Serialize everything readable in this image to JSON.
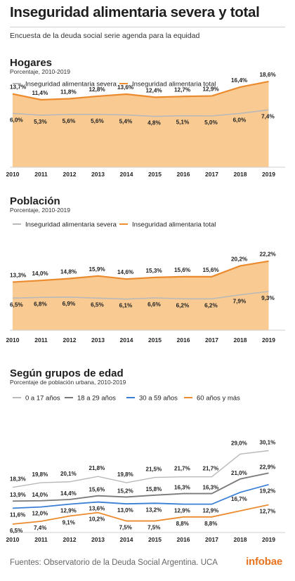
{
  "title": "Inseguridad alimentaria severa y total",
  "subtitle": "Encuesta de la deuda social serie agenda para la equidad",
  "footer": "Fuentes: Observatorio de la Deuda Social Argentina. UCA",
  "brand": "infobae",
  "colors": {
    "gray": "#b9b9b9",
    "orange": "#ec8a2e",
    "fill": "#f9cb93",
    "blue": "#3a7fd6",
    "darkgray": "#7a7a7a"
  },
  "chart_data": [
    {
      "type": "area",
      "title": "Hogares",
      "subtitle": "Porcentaje, 2010-2019",
      "x": [
        "2010",
        "2011",
        "2012",
        "2013",
        "2014",
        "2015",
        "2016",
        "2017",
        "2018",
        "2019"
      ],
      "series": [
        {
          "name": "Inseguridad alimentaria severa",
          "values": [
            6.0,
            5.3,
            5.6,
            5.6,
            5.4,
            4.8,
            5.1,
            5.0,
            6.0,
            7.4
          ],
          "labels": [
            "6,0%",
            "5,3%",
            "5,6%",
            "5,6%",
            "5,4%",
            "4,8%",
            "5,1%",
            "5,0%",
            "6,0%",
            "7,4%"
          ]
        },
        {
          "name": "Inseguridad alimentaria total",
          "values": [
            13.7,
            11.4,
            11.8,
            12.8,
            13.6,
            12.4,
            12.7,
            12.9,
            16.4,
            18.6
          ],
          "labels": [
            "13,7%",
            "11,4%",
            "11,8%",
            "12,8%",
            "13,6%",
            "12,4%",
            "12,7%",
            "12,9%",
            "16,4%",
            "18,6%"
          ]
        }
      ]
    },
    {
      "type": "area",
      "title": "Población",
      "subtitle": "Porcentaje, 2010-2019",
      "x": [
        "2010",
        "2011",
        "2012",
        "2013",
        "2014",
        "2015",
        "2016",
        "2017",
        "2018",
        "2019"
      ],
      "series": [
        {
          "name": "Inseguridad alimentaria severa",
          "values": [
            6.5,
            6.8,
            6.9,
            6.5,
            6.1,
            6.6,
            6.2,
            6.2,
            7.9,
            9.3
          ],
          "labels": [
            "6,5%",
            "6,8%",
            "6,9%",
            "6,5%",
            "6,1%",
            "6,6%",
            "6,2%",
            "6,2%",
            "7,9%",
            "9,3%"
          ]
        },
        {
          "name": "Inseguridad alimentaria total",
          "values": [
            13.3,
            14.0,
            14.8,
            15.9,
            14.6,
            15.3,
            15.6,
            15.6,
            20.2,
            22.2
          ],
          "labels": [
            "13,3%",
            "14,0%",
            "14,8%",
            "15,9%",
            "14,6%",
            "15,3%",
            "15,6%",
            "15,6%",
            "20,2%",
            "22,2%"
          ]
        }
      ]
    },
    {
      "type": "line",
      "title": "Según grupos de edad",
      "subtitle": "Porcentaje de población urbana, 2010-2019",
      "x": [
        "2010",
        "2011",
        "2012",
        "2013",
        "2014",
        "2015",
        "2016",
        "2017",
        "2018",
        "2019"
      ],
      "series": [
        {
          "name": "0 a 17 años",
          "values": [
            18.3,
            19.8,
            20.1,
            21.8,
            19.8,
            21.5,
            21.7,
            21.7,
            29.0,
            30.1
          ],
          "labels": [
            "18,3%",
            "19,8%",
            "20,1%",
            "21,8%",
            "19,8%",
            "21,5%",
            "21,7%",
            "21,7%",
            "29,0%",
            "30,1%"
          ]
        },
        {
          "name": "18 a 29 años",
          "values": [
            13.9,
            14.0,
            14.4,
            15.6,
            15.2,
            15.8,
            16.3,
            16.3,
            21.0,
            22.9
          ],
          "labels": [
            "13,9%",
            "14,0%",
            "14,4%",
            "15,6%",
            "15,2%",
            "15,8%",
            "16,3%",
            "16,3%",
            "21,0%",
            "22,9%"
          ]
        },
        {
          "name": "30 a 59 años",
          "values": [
            11.6,
            12.0,
            12.9,
            13.6,
            13.0,
            13.2,
            12.9,
            12.9,
            16.7,
            19.2
          ],
          "labels": [
            "11,6%",
            "12,0%",
            "12,9%",
            "13,6%",
            "13,0%",
            "13,2%",
            "12,9%",
            "12,9%",
            "16,7%",
            "19,2%"
          ]
        },
        {
          "name": "60 años y más",
          "values": [
            6.5,
            7.4,
            9.1,
            10.2,
            7.5,
            7.5,
            8.8,
            8.8,
            null,
            12.7
          ],
          "labels": [
            "6,5%",
            "7,4%",
            "9,1%",
            "10,2%",
            "7,5%",
            "7,5%",
            "8,8%",
            "8,8%",
            "",
            "12,7%"
          ]
        }
      ]
    }
  ]
}
